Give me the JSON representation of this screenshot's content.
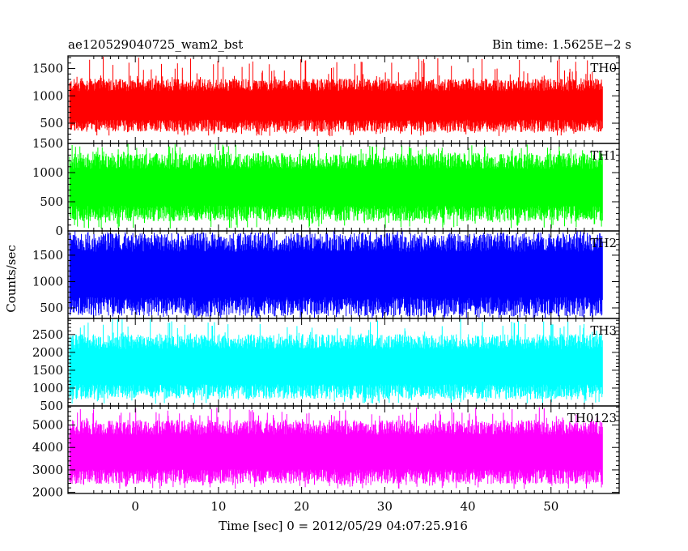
{
  "chart_data": {
    "type": "line",
    "title_left": "ae120529040725_wam2_bst",
    "title_right": "Bin time: 1.5625E−2 s",
    "xlabel": "Time [sec] 0 = 2012/05/29 04:07:25.916",
    "ylabel": "Counts/sec",
    "xlim": [
      -8.1,
      58.2
    ],
    "x_data_range": [
      -7.9,
      56.2
    ],
    "x_ticks": [
      0,
      10,
      20,
      30,
      40,
      50
    ],
    "x_tick_labels": [
      "0",
      "10",
      "20",
      "30",
      "40",
      "50"
    ],
    "panels": [
      {
        "name": "TH0",
        "color": "#ff0000",
        "ylim": [
          130,
          1730
        ],
        "y_ticks": [
          500,
          1000,
          1500
        ],
        "y_tick_labels": [
          "500",
          "1000",
          "1500"
        ],
        "typical_low": 450,
        "typical_high": 1200,
        "peak_max": 1720,
        "trough_min": 260
      },
      {
        "name": "TH1",
        "color": "#00ff00",
        "ylim": [
          0,
          1500
        ],
        "y_ticks": [
          0,
          500,
          1000,
          1500
        ],
        "y_tick_labels": [
          "0",
          "500",
          "1000",
          "1500"
        ],
        "typical_low": 300,
        "typical_high": 1200,
        "peak_max": 1500,
        "trough_min": 40
      },
      {
        "name": "TH2",
        "color": "#0000ff",
        "ylim": [
          300,
          1960
        ],
        "y_ticks": [
          500,
          1000,
          1500
        ],
        "y_tick_labels": [
          "500",
          "1000",
          "1500"
        ],
        "typical_low": 520,
        "typical_high": 1750,
        "peak_max": 1960,
        "trough_min": 300
      },
      {
        "name": "TH3",
        "color": "#00ffff",
        "ylim": [
          500,
          2950
        ],
        "y_ticks": [
          500,
          1000,
          1500,
          2000,
          2500
        ],
        "y_tick_labels": [
          "500",
          "1000",
          "1500",
          "2000",
          "2500"
        ],
        "typical_low": 900,
        "typical_high": 2300,
        "peak_max": 2950,
        "trough_min": 560
      },
      {
        "name": "TH0123",
        "color": "#ff00ff",
        "ylim": [
          1950,
          5850
        ],
        "y_ticks": [
          2000,
          3000,
          4000,
          5000
        ],
        "y_tick_labels": [
          "2000",
          "3000",
          "4000",
          "5000"
        ],
        "typical_low": 2700,
        "typical_high": 4900,
        "peak_max": 5800,
        "trough_min": 2150
      }
    ]
  }
}
